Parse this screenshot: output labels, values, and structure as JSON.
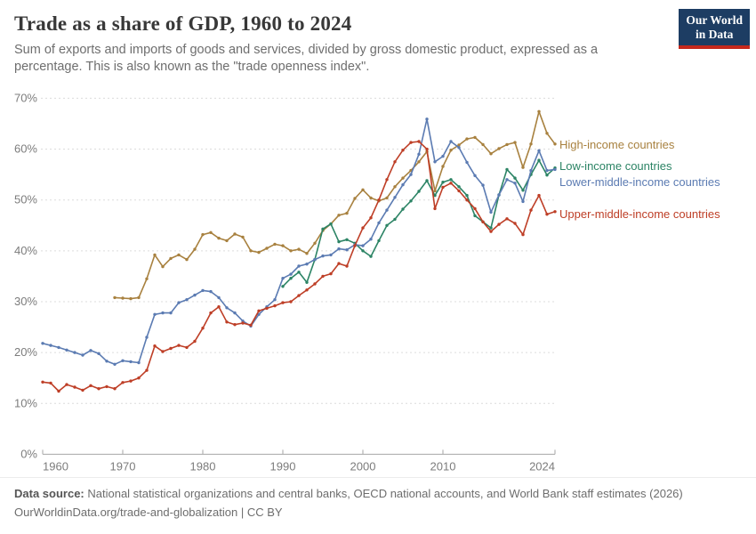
{
  "header": {
    "title": "Trade as a share of GDP, 1960 to 2024",
    "subtitle": "Sum of exports and imports of goods and services, divided by gross domestic product, expressed as a percentage. This is also known as the \"trade openness index\".",
    "logo": {
      "line1": "Our World",
      "line2": "in Data",
      "bg_color": "#1d3d63",
      "stripe_color": "#c5281c"
    }
  },
  "chart_data": {
    "type": "line",
    "title": "Trade as a share of GDP, 1960 to 2024",
    "xlabel": "",
    "ylabel": "",
    "grid": "horizontal-dashed",
    "legend_position": "right-of-line-ends",
    "xlim": [
      1960,
      2024
    ],
    "ylim": [
      0,
      70
    ],
    "x_ticks": [
      1960,
      1970,
      1980,
      1990,
      2000,
      2010,
      2024
    ],
    "y_ticks": [
      0,
      10,
      20,
      30,
      40,
      50,
      60,
      70
    ],
    "y_tick_suffix": "%",
    "series": [
      {
        "name": "High-income countries",
        "color": "#a8813f",
        "start_year": 1969,
        "values": [
          30.8,
          30.7,
          30.6,
          30.8,
          34.5,
          39.2,
          36.9,
          38.5,
          39.2,
          38.3,
          40.3,
          43.2,
          43.6,
          42.5,
          42.0,
          43.3,
          42.7,
          40.0,
          39.7,
          40.5,
          41.3,
          41.0,
          40.0,
          40.3,
          39.5,
          41.5,
          44.0,
          45.3,
          47.0,
          47.4,
          50.3,
          52.0,
          50.4,
          49.8,
          50.4,
          52.6,
          54.3,
          55.8,
          57.5,
          59.5,
          51.8,
          56.6,
          59.8,
          60.8,
          62.0,
          62.3,
          60.9,
          59.1,
          60.1,
          60.9,
          61.3,
          56.4,
          61.0,
          67.4,
          63.1,
          61.0
        ]
      },
      {
        "name": "Low-income countries",
        "color": "#2c8465",
        "start_year": 1990,
        "values": [
          33.0,
          34.6,
          35.8,
          33.8,
          38.3,
          44.3,
          45.3,
          41.8,
          42.2,
          41.5,
          40.0,
          38.9,
          42.0,
          45.0,
          46.2,
          48.2,
          49.8,
          51.7,
          53.8,
          50.9,
          53.5,
          54.0,
          52.6,
          50.9,
          46.9,
          45.7,
          44.5,
          51.0,
          56.0,
          54.3,
          51.9,
          55.0,
          57.8,
          54.9,
          56.3
        ]
      },
      {
        "name": "Lower-middle-income countries",
        "color": "#5b7bb2",
        "start_year": 1960,
        "values": [
          21.8,
          21.4,
          21.0,
          20.5,
          20.0,
          19.5,
          20.4,
          19.8,
          18.3,
          17.7,
          18.4,
          18.2,
          18.0,
          23.0,
          27.5,
          27.8,
          27.8,
          29.8,
          30.4,
          31.3,
          32.2,
          32.0,
          30.8,
          28.8,
          27.8,
          26.2,
          25.2,
          27.5,
          29.0,
          30.4,
          34.6,
          35.4,
          37.0,
          37.4,
          38.3,
          39.0,
          39.2,
          40.4,
          40.2,
          41.2,
          41.0,
          42.3,
          45.5,
          48.0,
          50.5,
          53.0,
          55.0,
          59.0,
          65.9,
          57.5,
          58.6,
          61.5,
          60.3,
          57.4,
          54.8,
          52.9,
          47.6,
          51.0,
          54.0,
          53.3,
          49.7,
          55.8,
          59.7,
          55.8,
          56.0
        ]
      },
      {
        "name": "Upper-middle-income countries",
        "color": "#be3e26",
        "start_year": 1960,
        "values": [
          14.2,
          14.0,
          12.4,
          13.7,
          13.2,
          12.6,
          13.5,
          12.9,
          13.3,
          12.9,
          14.1,
          14.4,
          15.0,
          16.5,
          21.3,
          20.2,
          20.8,
          21.4,
          21.0,
          22.2,
          24.8,
          27.8,
          29.0,
          26.0,
          25.5,
          25.8,
          25.4,
          28.2,
          28.7,
          29.2,
          29.8,
          30.0,
          31.2,
          32.3,
          33.5,
          35.0,
          35.5,
          37.5,
          37.0,
          41.0,
          44.5,
          46.5,
          50.0,
          54.0,
          57.5,
          59.8,
          61.3,
          61.5,
          60.0,
          48.3,
          52.5,
          53.3,
          51.8,
          50.0,
          48.3,
          45.7,
          43.8,
          45.2,
          46.3,
          45.4,
          43.2,
          48.0,
          50.9,
          47.2,
          47.7
        ]
      }
    ]
  },
  "footer": {
    "source_label": "Data source:",
    "source_text": " National statistical organizations and central banks, OECD national accounts, and World Bank staff estimates (2026)",
    "link": "OurWorldinData.org/trade-and-globalization",
    "license": " | CC BY"
  }
}
